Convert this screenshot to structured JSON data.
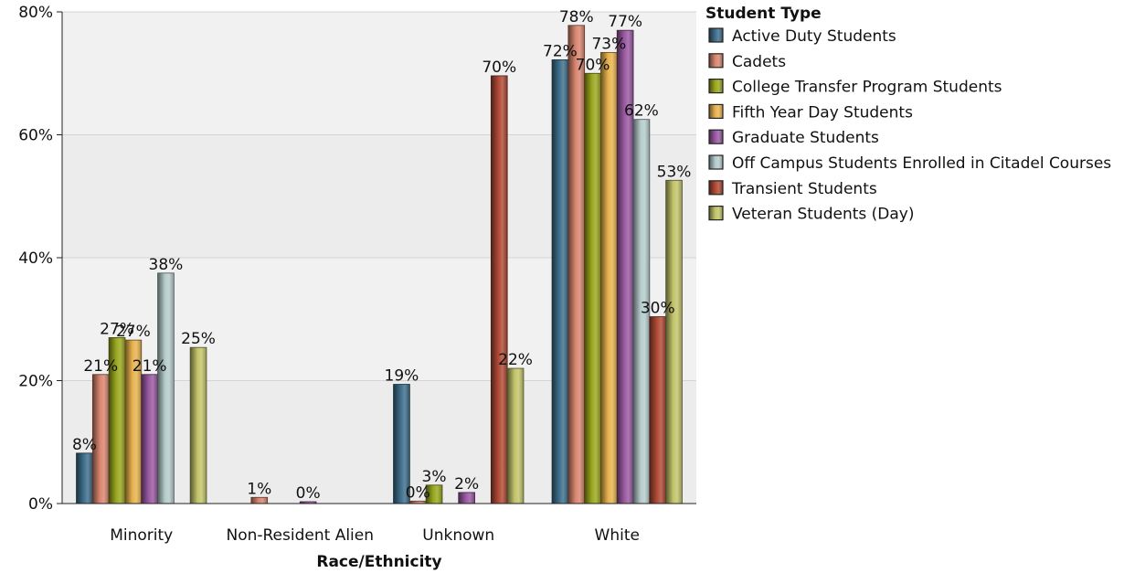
{
  "chart_data": {
    "type": "bar",
    "title": "",
    "xlabel": "Race/Ethnicity",
    "ylabel": "",
    "ylim": [
      0,
      80
    ],
    "y_ticks": [
      "0%",
      "20%",
      "40%",
      "60%",
      "80%"
    ],
    "y_tick_values": [
      0,
      20,
      40,
      60,
      80
    ],
    "grid": true,
    "legend_title": "Student Type",
    "legend_position": "top-right",
    "categories": [
      "Minority",
      "Non-Resident Alien",
      "Unknown",
      "White"
    ],
    "series": [
      {
        "name": "Active Duty Students",
        "color": "#3f6f8c",
        "values": [
          8.2,
          null,
          19.4,
          72.2
        ],
        "labels": [
          "8%",
          "",
          "19%",
          "72%"
        ]
      },
      {
        "name": "Cadets",
        "color": "#d98670",
        "values": [
          21.0,
          1.0,
          0.4,
          77.8
        ],
        "labels": [
          "21%",
          "1%",
          "0%",
          "78%"
        ]
      },
      {
        "name": "College Transfer Program Students",
        "color": "#9aa81f",
        "values": [
          27.0,
          null,
          3.0,
          70.0
        ],
        "labels": [
          "27%",
          "",
          "3%",
          "70%"
        ]
      },
      {
        "name": "Fifth Year Day Students",
        "color": "#e8b34e",
        "values": [
          26.6,
          null,
          null,
          73.4
        ],
        "labels": [
          "27%",
          "",
          "",
          "73%"
        ]
      },
      {
        "name": "Graduate Students",
        "color": "#9a5aa2",
        "values": [
          21.0,
          0.3,
          1.8,
          77.0
        ],
        "labels": [
          "21%",
          "0%",
          "2%",
          "77%"
        ]
      },
      {
        "name": "Off Campus Students Enrolled in Citadel Courses",
        "color": "#b6cccc",
        "values": [
          37.5,
          null,
          null,
          62.5
        ],
        "labels": [
          "38%",
          "",
          "",
          "62%"
        ]
      },
      {
        "name": "Transient Students",
        "color": "#b04a36",
        "values": [
          null,
          null,
          69.6,
          30.4
        ],
        "labels": [
          "",
          "",
          "70%",
          "30%"
        ]
      },
      {
        "name": "Veteran Students (Day)",
        "color": "#c2c46a",
        "values": [
          25.4,
          null,
          22.0,
          52.6
        ],
        "labels": [
          "25%",
          "",
          "22%",
          "53%"
        ]
      }
    ]
  }
}
